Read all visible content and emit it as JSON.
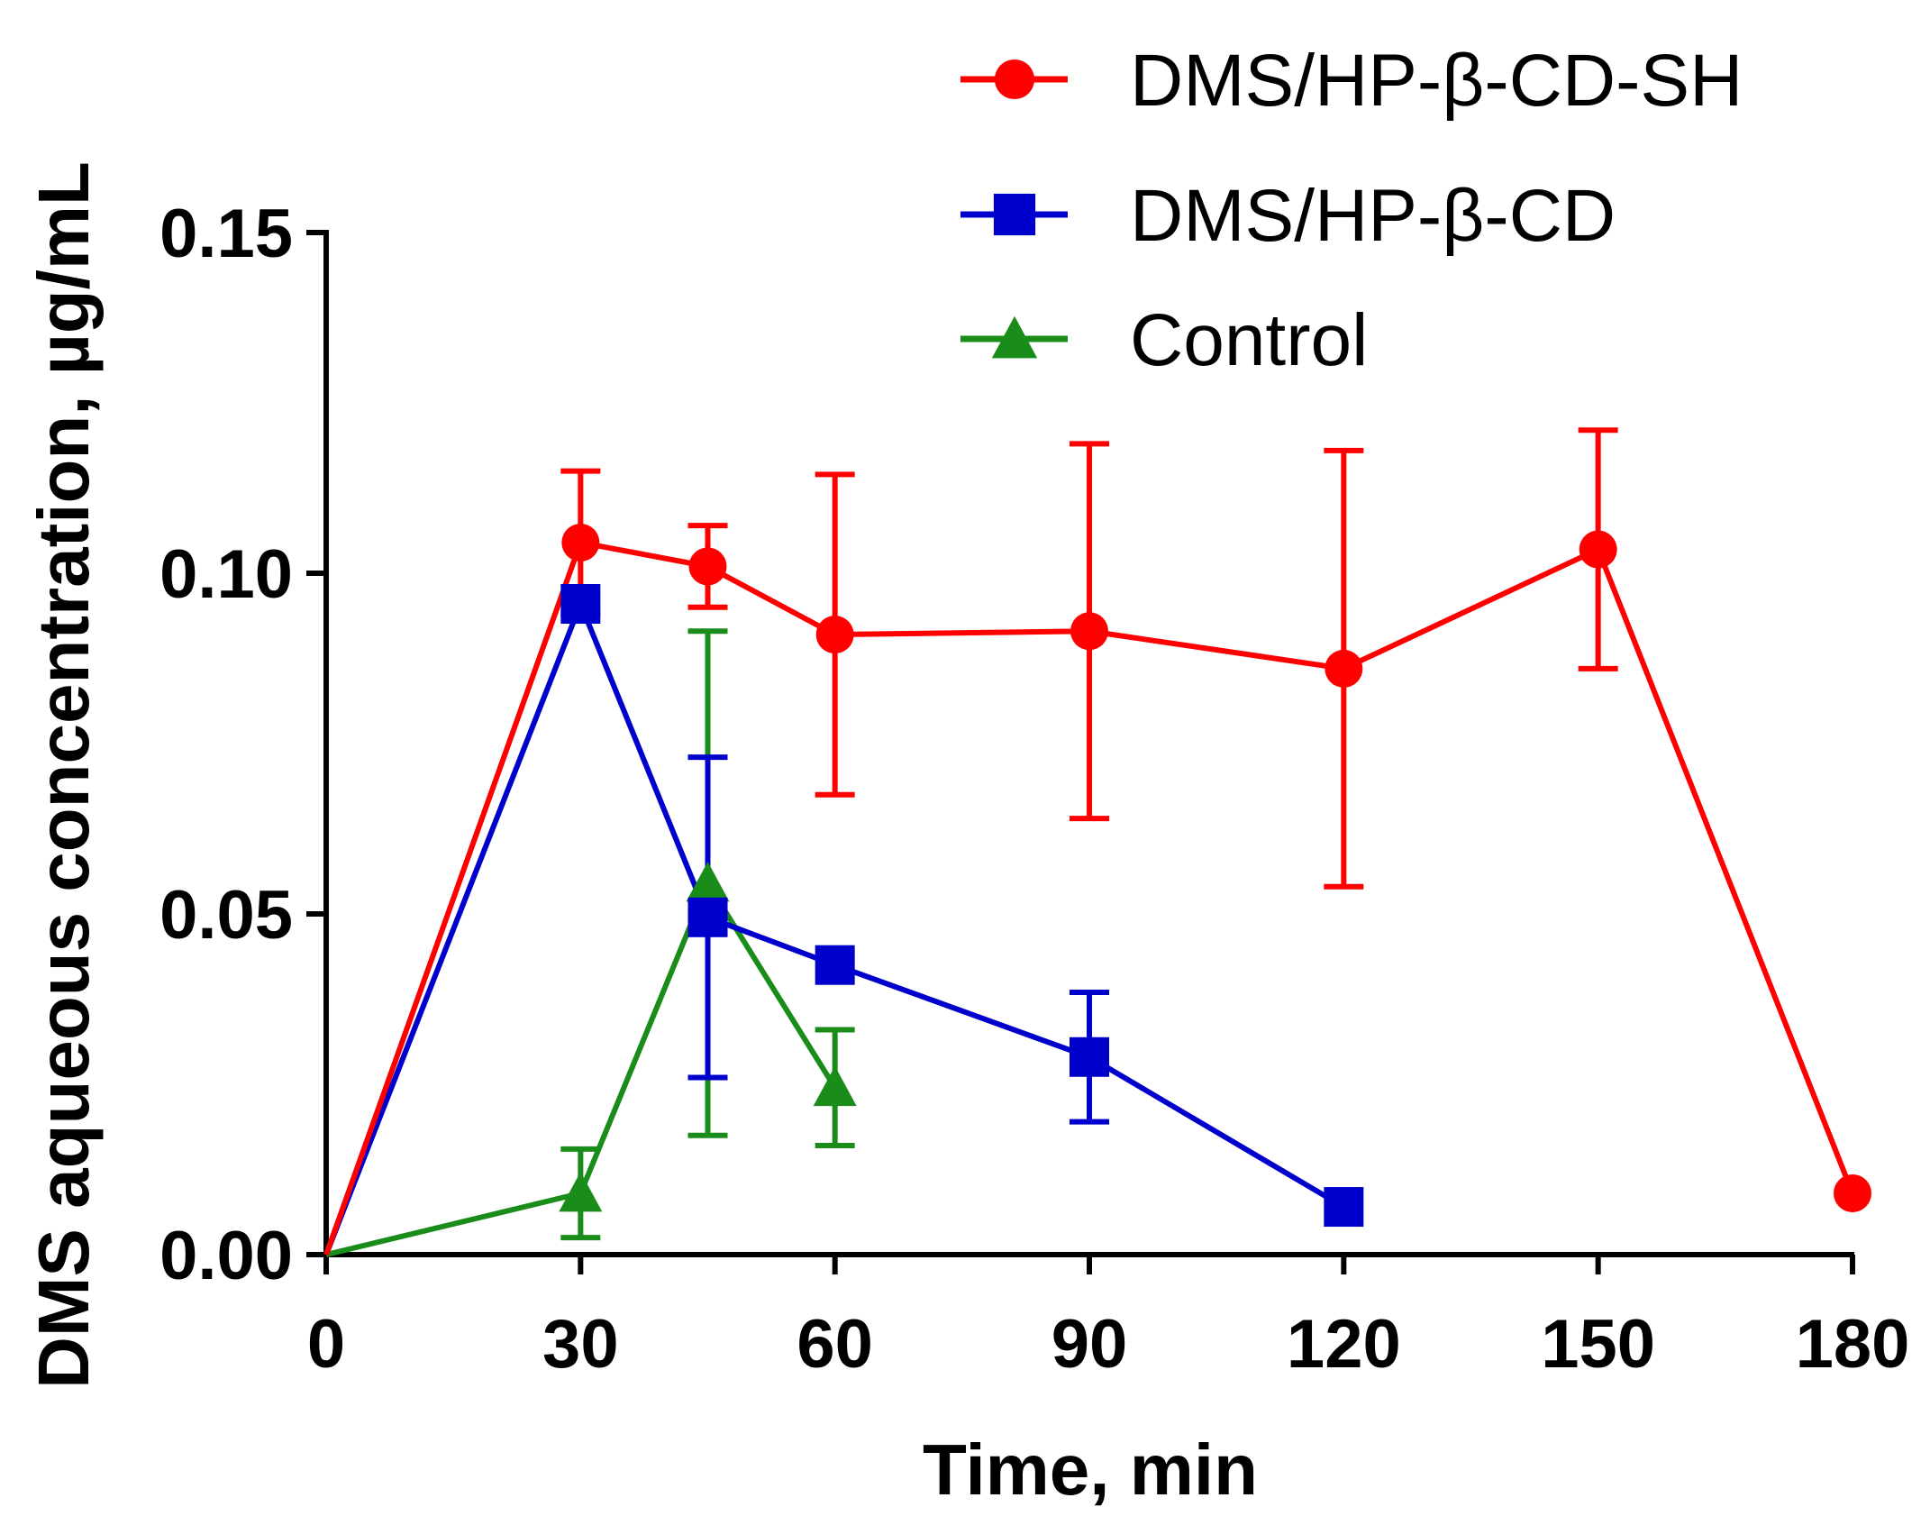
{
  "chart_data": {
    "type": "line",
    "title": "",
    "xlabel": "Time, min",
    "ylabel": "DMS aqueous concentration, µg/mL",
    "xlim": [
      0,
      180
    ],
    "ylim": [
      0,
      0.15
    ],
    "xticks": [
      0,
      30,
      60,
      90,
      120,
      150,
      180
    ],
    "xtick_labels": [
      "0",
      "30",
      "60",
      "90",
      "120",
      "150",
      "180"
    ],
    "yticks": [
      0,
      0.05,
      0.1,
      0.15
    ],
    "ytick_labels": [
      "0.00",
      "0.05",
      "0.10",
      "0.15"
    ],
    "grid": false,
    "legend_position": "top-right",
    "series": [
      {
        "name": "DMS/HP-β-CD-SH",
        "color": "#ff0000",
        "marker": "circle",
        "x": [
          0,
          30,
          45,
          60,
          90,
          120,
          150,
          180
        ],
        "y": [
          0,
          0.1045,
          0.101,
          0.091,
          0.0915,
          0.086,
          0.1035,
          0.009
        ],
        "err": [
          0,
          0.0105,
          0.006,
          0.0235,
          0.0275,
          0.032,
          0.0175,
          0
        ]
      },
      {
        "name": "DMS/HP-β-CD",
        "color": "#0000cc",
        "marker": "square",
        "x": [
          0,
          30,
          45,
          60,
          90,
          120
        ],
        "y": [
          0,
          0.0955,
          0.0495,
          0.0425,
          0.029,
          0.007
        ],
        "err": [
          0,
          0,
          0.0235,
          0,
          0.0095,
          0
        ]
      },
      {
        "name": "Control",
        "color": "#1a8c1a",
        "marker": "triangle",
        "x": [
          0,
          30,
          45,
          60
        ],
        "y": [
          0,
          0.009,
          0.0545,
          0.0245
        ],
        "err": [
          0,
          0.0065,
          0.037,
          0.0085
        ]
      }
    ]
  }
}
